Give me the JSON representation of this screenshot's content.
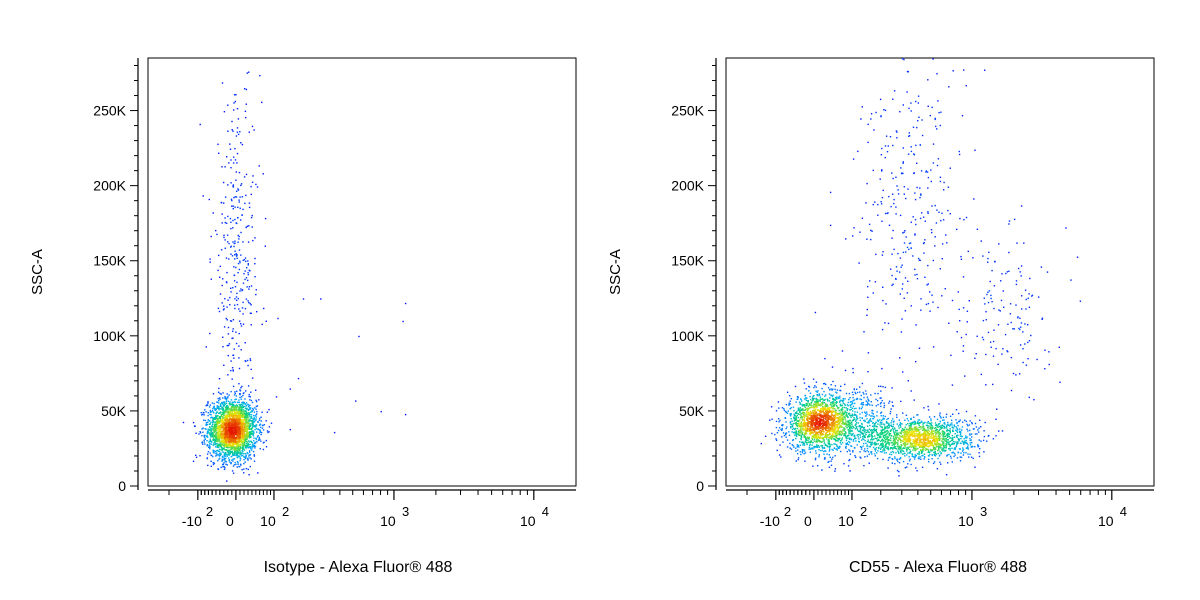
{
  "chart_data": [
    {
      "type": "scatter",
      "title": "",
      "xlabel": "Isotype - Alexa Fluor® 488",
      "ylabel": "SSC-A",
      "xscale": "biexponential",
      "xlim": [
        -300,
        20000
      ],
      "ylim": [
        0,
        285000
      ],
      "x_ticks": [
        {
          "value": -100,
          "label": "-10",
          "sup": "2"
        },
        {
          "value": 0,
          "label": "0",
          "sup": ""
        },
        {
          "value": 100,
          "label": "10",
          "sup": "2"
        },
        {
          "value": 1000,
          "label": "10",
          "sup": "3"
        },
        {
          "value": 10000,
          "label": "10",
          "sup": "4"
        }
      ],
      "y_ticks": [
        {
          "value": 0,
          "label": "0"
        },
        {
          "value": 50000,
          "label": "50K"
        },
        {
          "value": 100000,
          "label": "100K"
        },
        {
          "value": 150000,
          "label": "150K"
        },
        {
          "value": 200000,
          "label": "200K"
        },
        {
          "value": 250000,
          "label": "250K"
        }
      ],
      "color_scale": "density (blue → green → yellow → red)",
      "clusters": [
        {
          "center_x": -10,
          "center_y": 38000,
          "spread_x": 30,
          "spread_y": 10000,
          "count": 2600
        },
        {
          "center_x": 0,
          "center_y": 150000,
          "spread_x": 30,
          "spread_y": 55000,
          "count": 350
        }
      ],
      "outliers": [
        {
          "x": 200,
          "y": 125000
        },
        {
          "x": 280,
          "y": 125000
        },
        {
          "x": 1200,
          "y": 122000
        },
        {
          "x": 1150,
          "y": 110000
        },
        {
          "x": 550,
          "y": 100000
        },
        {
          "x": 150,
          "y": 65000
        },
        {
          "x": 180,
          "y": 72000
        },
        {
          "x": 520,
          "y": 57000
        },
        {
          "x": 800,
          "y": 50000
        },
        {
          "x": 1200,
          "y": 48000
        },
        {
          "x": 150,
          "y": 38000
        },
        {
          "x": 360,
          "y": 36000
        },
        {
          "x": 20,
          "y": 265000
        },
        {
          "x": 30,
          "y": 276000
        },
        {
          "x": 110,
          "y": 112000
        }
      ]
    },
    {
      "type": "scatter",
      "title": "",
      "xlabel": "CD55 - Alexa Fluor® 488",
      "ylabel": "SSC-A",
      "xscale": "biexponential",
      "xlim": [
        -300,
        20000
      ],
      "ylim": [
        0,
        285000
      ],
      "x_ticks": [
        {
          "value": -100,
          "label": "-10",
          "sup": "2"
        },
        {
          "value": 0,
          "label": "0",
          "sup": ""
        },
        {
          "value": 100,
          "label": "10",
          "sup": "2"
        },
        {
          "value": 1000,
          "label": "10",
          "sup": "3"
        },
        {
          "value": 10000,
          "label": "10",
          "sup": "4"
        }
      ],
      "y_ticks": [
        {
          "value": 0,
          "label": "0"
        },
        {
          "value": 50000,
          "label": "50K"
        },
        {
          "value": 100000,
          "label": "100K"
        },
        {
          "value": 150000,
          "label": "150K"
        },
        {
          "value": 200000,
          "label": "200K"
        },
        {
          "value": 250000,
          "label": "250K"
        }
      ],
      "color_scale": "density (blue → green → yellow → red)",
      "clusters": [
        {
          "center_x": 10,
          "center_y": 42000,
          "spread_x": 40,
          "spread_y": 9000,
          "count": 1500
        },
        {
          "center_x": 400,
          "center_y": 32000,
          "spread_x": 250,
          "spread_y": 7000,
          "count": 1500
        },
        {
          "center_x": 100,
          "center_y": 45000,
          "spread_x": 80,
          "spread_y": 12000,
          "count": 600
        },
        {
          "center_x": 350,
          "center_y": 180000,
          "spread_x": 200,
          "spread_y": 50000,
          "count": 300
        },
        {
          "center_x": 1700,
          "center_y": 120000,
          "spread_x": 800,
          "spread_y": 30000,
          "count": 150
        }
      ],
      "outliers": [
        {
          "x": 300,
          "y": 285000
        },
        {
          "x": 550,
          "y": 275000
        },
        {
          "x": 900,
          "y": 267000
        },
        {
          "x": 250,
          "y": 258000
        },
        {
          "x": 400,
          "y": 260000
        },
        {
          "x": 130,
          "y": 253000
        },
        {
          "x": 40,
          "y": 196000
        },
        {
          "x": 40,
          "y": 174000
        },
        {
          "x": 80,
          "y": 165000
        },
        {
          "x": 100,
          "y": 167000
        },
        {
          "x": 2,
          "y": 116000
        },
        {
          "x": 2000,
          "y": 178000
        }
      ]
    }
  ]
}
